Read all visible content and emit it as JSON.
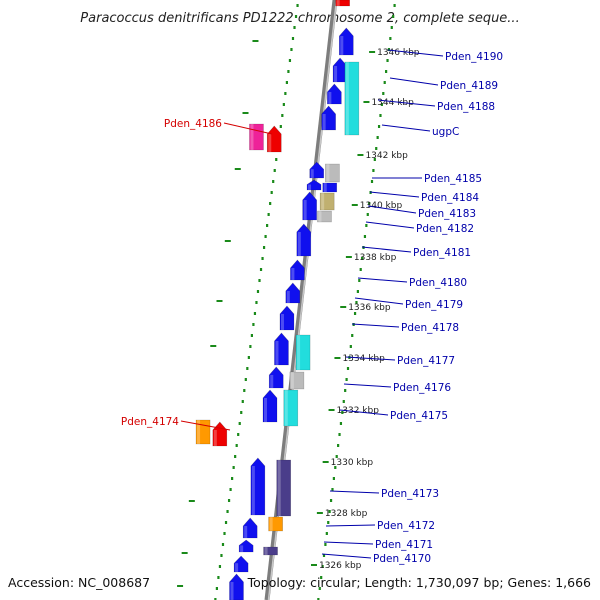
{
  "title": "Paracoccus denitrificans PD1222 chromosome 2, complete seque...",
  "footer": {
    "accession": "Accession: NC_008687",
    "summary": "Topology: circular; Length: 1,730,097 bp; Genes: 1,666"
  },
  "colors": {
    "backbone": "#9a9a9a",
    "dots": "#1a8a1a",
    "label_blue": "#0000aa",
    "label_red": "#d40000",
    "blue_gene": "#1010ee",
    "cyan_gene": "#22dddd",
    "magenta_gene": "#ee2299",
    "red_gene": "#ee0000",
    "orange_gene": "#ff9900",
    "navy_gene": "#4a3d8a",
    "khaki_gene": "#c0b070",
    "grey_gene": "#bbbbbb"
  },
  "kbp_ticks": [
    {
      "label": "1346 kbp",
      "kbp": 1346
    },
    {
      "label": "1344 kbp",
      "kbp": 1344
    },
    {
      "label": "1342 kbp",
      "kbp": 1342
    },
    {
      "label": "1340 kbp",
      "kbp": 1340
    },
    {
      "label": "1338 kbp",
      "kbp": 1338
    },
    {
      "label": "1336 kbp",
      "kbp": 1336
    },
    {
      "label": "1334 kbp",
      "kbp": 1334
    },
    {
      "label": "1332 kbp",
      "kbp": 1332
    },
    {
      "label": "1330 kbp",
      "kbp": 1330
    },
    {
      "label": "1328 kbp",
      "kbp": 1328
    },
    {
      "label": "1326 kbp",
      "kbp": 1326
    }
  ],
  "gene_labels": [
    {
      "name": "Pden_4190",
      "color": "blue"
    },
    {
      "name": "Pden_4189",
      "color": "blue"
    },
    {
      "name": "Pden_4188",
      "color": "blue"
    },
    {
      "name": "ugpC",
      "color": "blue"
    },
    {
      "name": "Pden_4185",
      "color": "blue"
    },
    {
      "name": "Pden_4184",
      "color": "blue"
    },
    {
      "name": "Pden_4183",
      "color": "blue"
    },
    {
      "name": "Pden_4182",
      "color": "blue"
    },
    {
      "name": "Pden_4181",
      "color": "blue"
    },
    {
      "name": "Pden_4180",
      "color": "blue"
    },
    {
      "name": "Pden_4179",
      "color": "blue"
    },
    {
      "name": "Pden_4178",
      "color": "blue"
    },
    {
      "name": "Pden_4177",
      "color": "blue"
    },
    {
      "name": "Pden_4176",
      "color": "blue"
    },
    {
      "name": "Pden_4175",
      "color": "blue"
    },
    {
      "name": "Pden_4173",
      "color": "blue"
    },
    {
      "name": "Pden_4172",
      "color": "blue"
    },
    {
      "name": "Pden_4171",
      "color": "blue"
    },
    {
      "name": "Pden_4170",
      "color": "blue"
    },
    {
      "name": "Pden_4186",
      "color": "red"
    },
    {
      "name": "Pden_4174",
      "color": "red"
    }
  ]
}
